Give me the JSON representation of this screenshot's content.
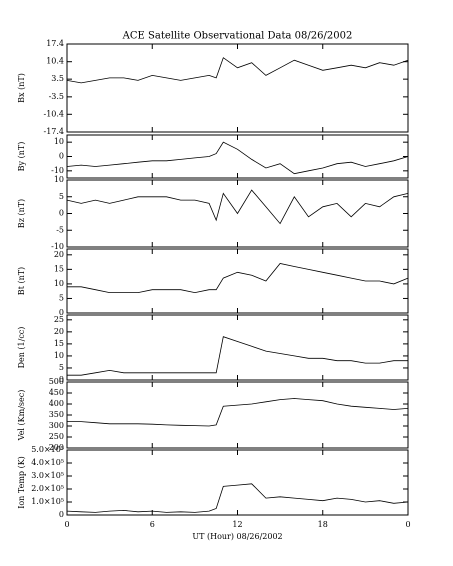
{
  "chart_data": [
    {
      "type": "line",
      "title": "ACE Satellite Observational Data  08/26/2002",
      "ylabel": "Bx (nT)",
      "x": [
        0,
        1,
        2,
        3,
        4,
        5,
        6,
        7,
        8,
        9,
        10,
        10.5,
        11,
        12,
        13,
        14,
        15,
        16,
        17,
        18,
        19,
        20,
        21,
        22,
        23,
        24
      ],
      "series": [
        {
          "name": "Bx",
          "color": "#000000",
          "values": [
            3,
            2,
            3,
            4,
            4,
            3,
            5,
            4,
            3,
            4,
            5,
            4,
            12,
            8,
            10,
            5,
            8,
            11,
            9,
            7,
            8,
            9,
            8,
            10,
            9,
            11
          ]
        }
      ],
      "xlim": [
        0,
        24
      ],
      "xticks": [
        0,
        6,
        12,
        18,
        {
          "value": 24,
          "label": "0"
        }
      ],
      "ylim": [
        -17.4,
        17.4
      ],
      "yticks": [
        -17.4,
        -10.4,
        -3.5,
        3.5,
        10.4,
        17.4
      ]
    },
    {
      "type": "line",
      "ylabel": "By (nT)",
      "x": [
        0,
        1,
        2,
        3,
        4,
        5,
        6,
        7,
        8,
        9,
        10,
        10.5,
        11,
        12,
        13,
        14,
        15,
        16,
        17,
        18,
        19,
        20,
        21,
        22,
        23,
        24
      ],
      "series": [
        {
          "name": "By",
          "color": "#000000",
          "values": [
            -7,
            -6,
            -7,
            -6,
            -5,
            -4,
            -3,
            -3,
            -2,
            -1,
            0,
            2,
            10,
            5,
            -2,
            -8,
            -5,
            -12,
            -10,
            -8,
            -5,
            -4,
            -7,
            -5,
            -3,
            0
          ]
        }
      ],
      "xlim": [
        0,
        24
      ],
      "xticks": [
        0,
        6,
        12,
        18,
        {
          "value": 24,
          "label": "0"
        }
      ],
      "ylim": [
        -15,
        15
      ],
      "yticks": [
        -10,
        0,
        10
      ]
    },
    {
      "type": "line",
      "ylabel": "Bz (nT)",
      "x": [
        0,
        1,
        2,
        3,
        4,
        5,
        6,
        7,
        8,
        9,
        10,
        10.5,
        11,
        12,
        13,
        14,
        15,
        16,
        17,
        18,
        19,
        20,
        21,
        22,
        23,
        24
      ],
      "series": [
        {
          "name": "Bz",
          "color": "#000000",
          "values": [
            4,
            3,
            4,
            3,
            4,
            5,
            5,
            5,
            4,
            4,
            3,
            -2,
            6,
            0,
            7,
            2,
            -3,
            5,
            -1,
            2,
            3,
            -1,
            3,
            2,
            5,
            6
          ]
        }
      ],
      "xlim": [
        0,
        24
      ],
      "xticks": [
        0,
        6,
        12,
        18,
        {
          "value": 24,
          "label": "0"
        }
      ],
      "ylim": [
        -10,
        10
      ],
      "yticks": [
        -10,
        -5,
        0,
        5,
        10
      ]
    },
    {
      "type": "line",
      "ylabel": "Bt (nT)",
      "x": [
        0,
        1,
        2,
        3,
        4,
        5,
        6,
        7,
        8,
        9,
        10,
        10.5,
        11,
        12,
        13,
        14,
        15,
        16,
        17,
        18,
        19,
        20,
        21,
        22,
        23,
        24
      ],
      "series": [
        {
          "name": "Bt",
          "color": "#000000",
          "values": [
            9,
            9,
            8,
            7,
            7,
            7,
            8,
            8,
            8,
            7,
            8,
            8,
            12,
            14,
            13,
            11,
            17,
            16,
            15,
            14,
            13,
            12,
            11,
            11,
            10,
            12
          ]
        }
      ],
      "xlim": [
        0,
        24
      ],
      "xticks": [
        0,
        6,
        12,
        18,
        {
          "value": 24,
          "label": "0"
        }
      ],
      "ylim": [
        0,
        22
      ],
      "yticks": [
        0,
        5,
        10,
        15,
        20
      ]
    },
    {
      "type": "line",
      "ylabel": "Den (1/cc)",
      "x": [
        0,
        1,
        2,
        3,
        4,
        5,
        6,
        7,
        8,
        9,
        10,
        10.5,
        11,
        12,
        13,
        14,
        15,
        16,
        17,
        18,
        19,
        20,
        21,
        22,
        23,
        24
      ],
      "series": [
        {
          "name": "Den",
          "color": "#000000",
          "values": [
            2,
            2,
            3,
            4,
            3,
            3,
            3,
            3,
            3,
            3,
            3,
            3,
            18,
            16,
            14,
            12,
            11,
            10,
            9,
            9,
            8,
            8,
            7,
            7,
            8,
            8
          ]
        }
      ],
      "xlim": [
        0,
        24
      ],
      "xticks": [
        0,
        6,
        12,
        18,
        {
          "value": 24,
          "label": "0"
        }
      ],
      "ylim": [
        0,
        27
      ],
      "yticks": [
        0,
        5,
        10,
        15,
        20,
        25
      ]
    },
    {
      "type": "line",
      "ylabel": "Vel (Km/sec)",
      "x": [
        0,
        1,
        2,
        3,
        4,
        5,
        6,
        7,
        8,
        9,
        10,
        10.5,
        11,
        12,
        13,
        14,
        15,
        16,
        17,
        18,
        19,
        20,
        21,
        22,
        23,
        24
      ],
      "series": [
        {
          "name": "Vel",
          "color": "#000000",
          "values": [
            320,
            320,
            315,
            310,
            310,
            310,
            308,
            305,
            303,
            302,
            300,
            305,
            390,
            395,
            400,
            410,
            420,
            425,
            420,
            415,
            400,
            390,
            385,
            380,
            375,
            380
          ]
        }
      ],
      "xlim": [
        0,
        24
      ],
      "xticks": [
        0,
        6,
        12,
        18,
        {
          "value": 24,
          "label": "0"
        }
      ],
      "ylim": [
        200,
        500
      ],
      "yticks": [
        200,
        250,
        300,
        350,
        400,
        450,
        500
      ]
    },
    {
      "type": "line",
      "ylabel": "Ion Temp (K)",
      "xlabel": "UT (Hour)  08/26/2002",
      "x": [
        0,
        1,
        2,
        3,
        4,
        5,
        6,
        7,
        8,
        9,
        10,
        10.5,
        11,
        12,
        13,
        14,
        15,
        16,
        17,
        18,
        19,
        20,
        21,
        22,
        23,
        24
      ],
      "series": [
        {
          "name": "Ion Temp",
          "color": "#000000",
          "values": [
            30000,
            25000,
            20000,
            30000,
            35000,
            25000,
            30000,
            20000,
            25000,
            20000,
            30000,
            50000,
            220000,
            230000,
            240000,
            130000,
            140000,
            130000,
            120000,
            110000,
            130000,
            120000,
            100000,
            110000,
            90000,
            100000
          ]
        }
      ],
      "xlim": [
        0,
        24
      ],
      "xticks": [
        0,
        6,
        12,
        18,
        {
          "value": 24,
          "label": "0"
        }
      ],
      "ylim": [
        0,
        500000
      ],
      "yticks": [
        0,
        {
          "value": 100000,
          "label": "1.0×10⁵"
        },
        {
          "value": 200000,
          "label": "2.0×10⁵"
        },
        {
          "value": 300000,
          "label": "3.0×10⁵"
        },
        {
          "value": 400000,
          "label": "4.0×10⁵"
        },
        {
          "value": 500000,
          "label": "5.0×10⁵"
        }
      ]
    }
  ]
}
